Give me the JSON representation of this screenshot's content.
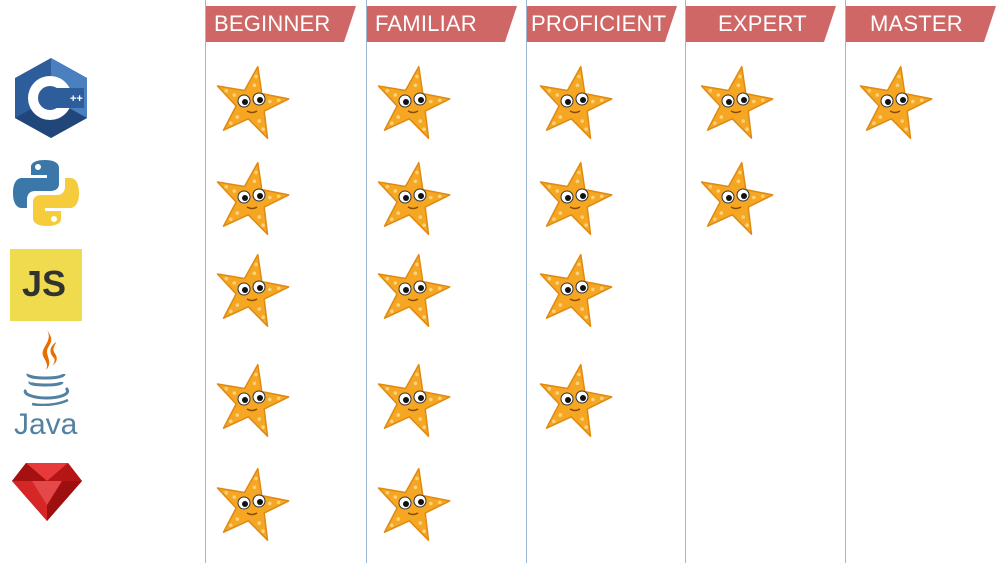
{
  "levels": [
    "BEGINNER",
    "FAMILIAR",
    "PROFICIENT",
    "EXPERT",
    "MASTER"
  ],
  "languages": [
    {
      "icon": "cpp-logo-icon",
      "logo_text": "C",
      "logo_sup": "++",
      "rating": 5,
      "color": "#2e5d9b"
    },
    {
      "icon": "python-logo-icon",
      "rating": 4,
      "color": "#3b77a8"
    },
    {
      "icon": "javascript-logo-icon",
      "logo_text": "JS",
      "rating": 3,
      "color": "#f0db4f"
    },
    {
      "icon": "java-logo-icon",
      "logo_text": "Java",
      "rating": 3,
      "color": "#5382a1"
    },
    {
      "icon": "ruby-logo-icon",
      "rating": 2,
      "color": "#c81c1c"
    }
  ],
  "colors": {
    "header": "#d06767",
    "grid_line": "#9bb7d4",
    "star": "#f5a623",
    "star_spots": "#fdd27a"
  }
}
